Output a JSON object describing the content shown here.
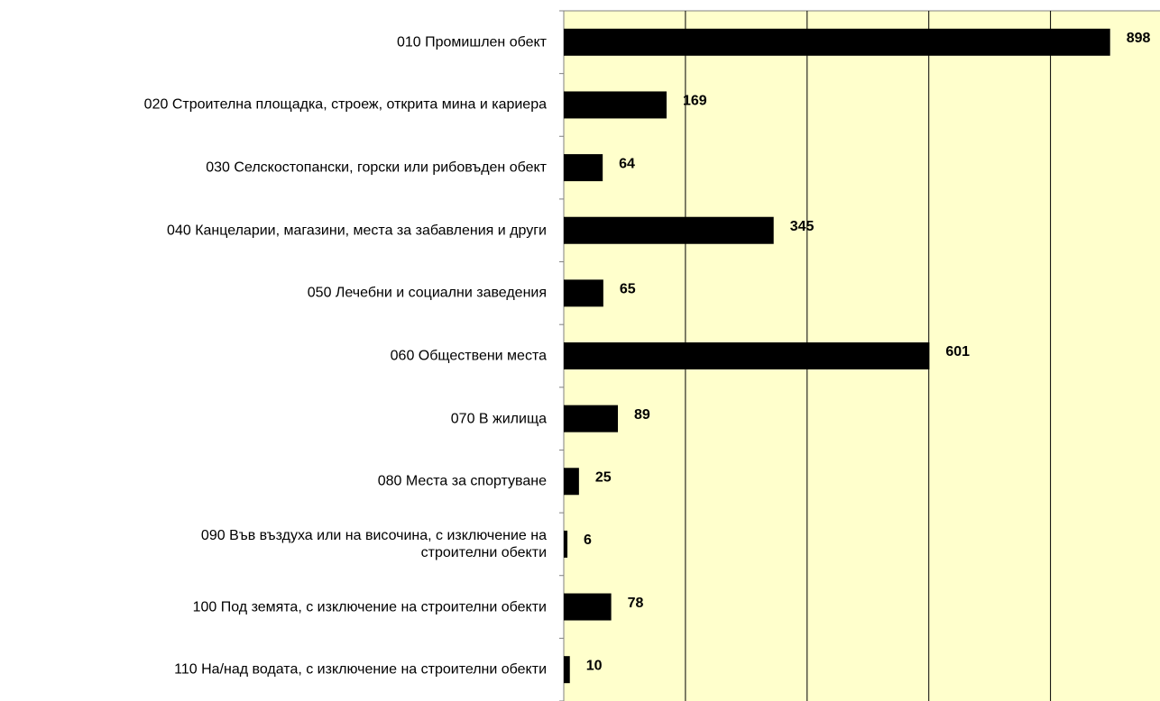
{
  "chart_data": {
    "type": "bar",
    "orientation": "horizontal",
    "categories": [
      "010 Промишлен обект",
      "020 Строителна площадка, строеж, открита мина и кариера",
      "030 Селскостопански, горски или рибовъден обект",
      "040 Канцеларии, магазини, места за забавления и други",
      "050 Лечебни и социални заведения",
      "060 Обществени места",
      "070 В жилища",
      "080 Места за спортуване",
      "090 Във въздуха или на височина, с изключение на\nстроителни обекти",
      "100 Под земята, с изключение на строителни обекти",
      "110 На/над водата, с изключение на строителни обекти"
    ],
    "values": [
      898,
      169,
      64,
      345,
      65,
      601,
      89,
      25,
      6,
      78,
      10
    ],
    "color": "#000000",
    "background": "#ffffcc",
    "xlim": [
      0,
      980
    ],
    "xticks": [
      0,
      200,
      400,
      600,
      800
    ],
    "grid": true
  }
}
